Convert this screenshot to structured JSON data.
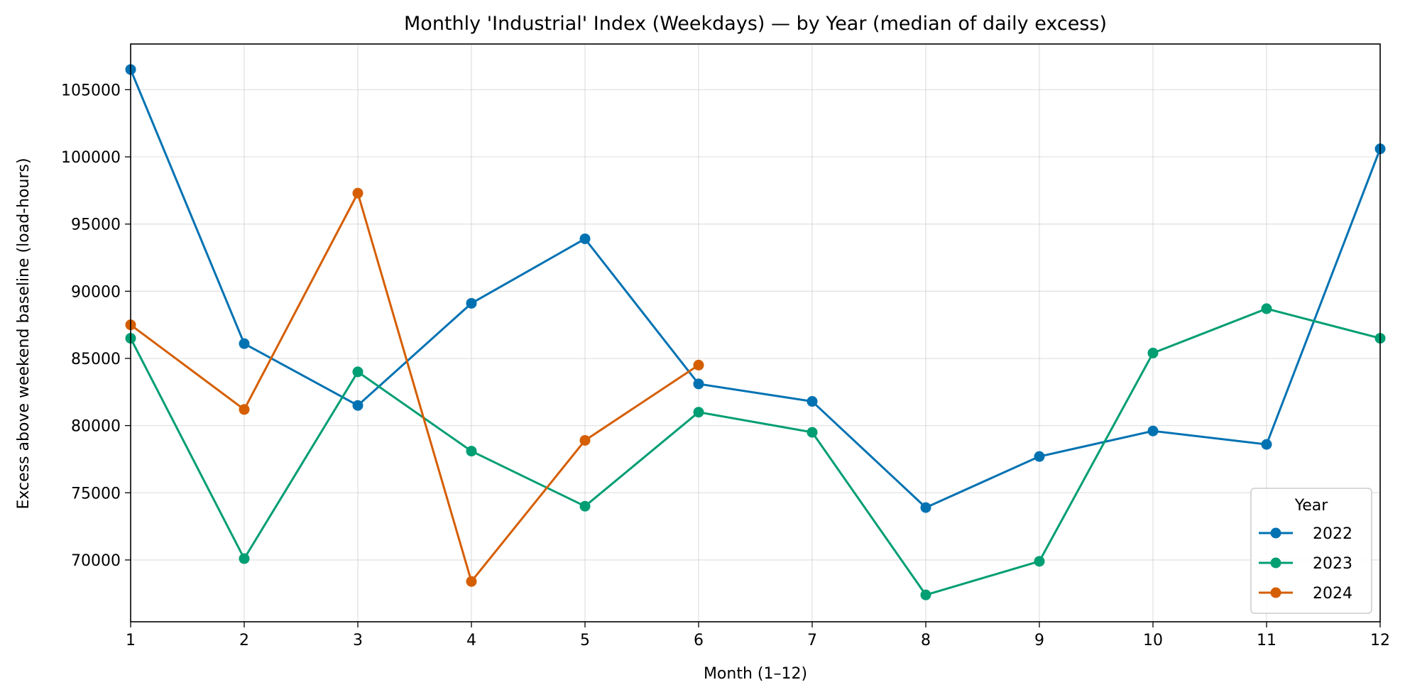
{
  "chart_data": {
    "type": "line",
    "title": "Monthly 'Industrial' Index (Weekdays) — by Year (median of daily excess)",
    "xlabel": "Month (1–12)",
    "ylabel": "Excess above weekend baseline (load-hours)",
    "xlim": [
      1,
      12
    ],
    "ylim": [
      65400,
      108400
    ],
    "x_ticks": [
      1,
      2,
      3,
      4,
      5,
      6,
      7,
      8,
      9,
      10,
      11,
      12
    ],
    "y_ticks": [
      70000,
      75000,
      80000,
      85000,
      90000,
      95000,
      100000,
      105000
    ],
    "grid": true,
    "legend": {
      "title": "Year",
      "placement": "lower-right"
    },
    "series": [
      {
        "name": "2022",
        "color": "#0072B2",
        "x": [
          1,
          2,
          3,
          4,
          5,
          6,
          7,
          8,
          9,
          10,
          11,
          12
        ],
        "values": [
          106500,
          86100,
          81500,
          89100,
          93900,
          83100,
          81800,
          73900,
          77700,
          79600,
          78600,
          100600
        ]
      },
      {
        "name": "2023",
        "color": "#009E73",
        "x": [
          1,
          2,
          3,
          4,
          5,
          6,
          7,
          8,
          9,
          10,
          11,
          12
        ],
        "values": [
          86500,
          70100,
          84000,
          78100,
          74000,
          81000,
          79500,
          67400,
          69900,
          85400,
          88700,
          86500
        ]
      },
      {
        "name": "2024",
        "color": "#D55E00",
        "x": [
          1,
          2,
          3,
          4,
          5,
          6
        ],
        "values": [
          87500,
          81200,
          97300,
          68400,
          78900,
          84500
        ]
      }
    ]
  }
}
